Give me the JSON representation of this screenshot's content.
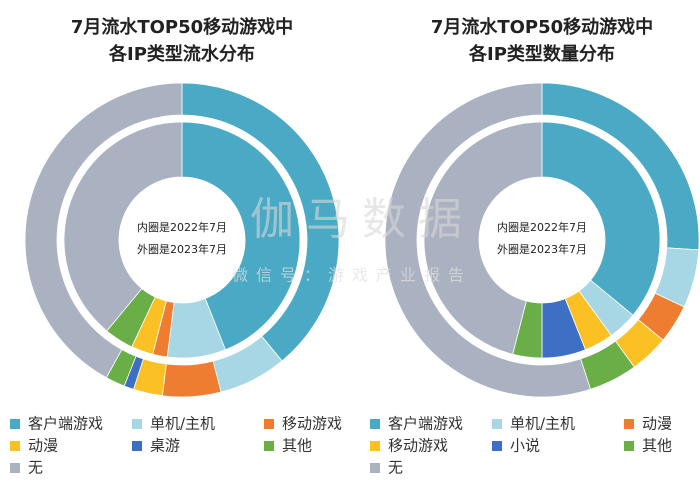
{
  "chart_data": [
    {
      "type": "donut",
      "title": [
        "7月流水TOP50移动游戏中",
        "各IP类型流水分布"
      ],
      "center_labels": [
        "内圈是2022年7月",
        "外圈是2023年7月"
      ],
      "categories": [
        "客户端游戏",
        "单机/主机",
        "移动游戏",
        "动漫",
        "桌游",
        "其他",
        "无"
      ],
      "colors": [
        "#4aa9c4",
        "#a7d6e5",
        "#ee7d31",
        "#fbc024",
        "#3d6fc5",
        "#6aae47",
        "#aab1c1"
      ],
      "inner_values": [
        44,
        8,
        2,
        3,
        0,
        4,
        39
      ],
      "outer_values": [
        39,
        7,
        6,
        3,
        1,
        2,
        42
      ]
    },
    {
      "type": "donut",
      "title": [
        "7月流水TOP50移动游戏中",
        "各IP类型数量分布"
      ],
      "center_labels": [
        "内圈是2022年7月",
        "外圈是2023年7月"
      ],
      "categories": [
        "客户端游戏",
        "单机/主机",
        "动漫",
        "移动游戏",
        "小说",
        "其他",
        "无"
      ],
      "colors": [
        "#4aa9c4",
        "#a7d6e5",
        "#ee7d31",
        "#fbc024",
        "#3d6fc5",
        "#6aae47",
        "#aab1c1"
      ],
      "inner_values": [
        36,
        4,
        0,
        4,
        6,
        4,
        46
      ],
      "outer_values": [
        26,
        6,
        4,
        4,
        0,
        5,
        55
      ]
    }
  ],
  "watermark": [
    "伽马数据",
    "微信号：游戏产业报告"
  ]
}
